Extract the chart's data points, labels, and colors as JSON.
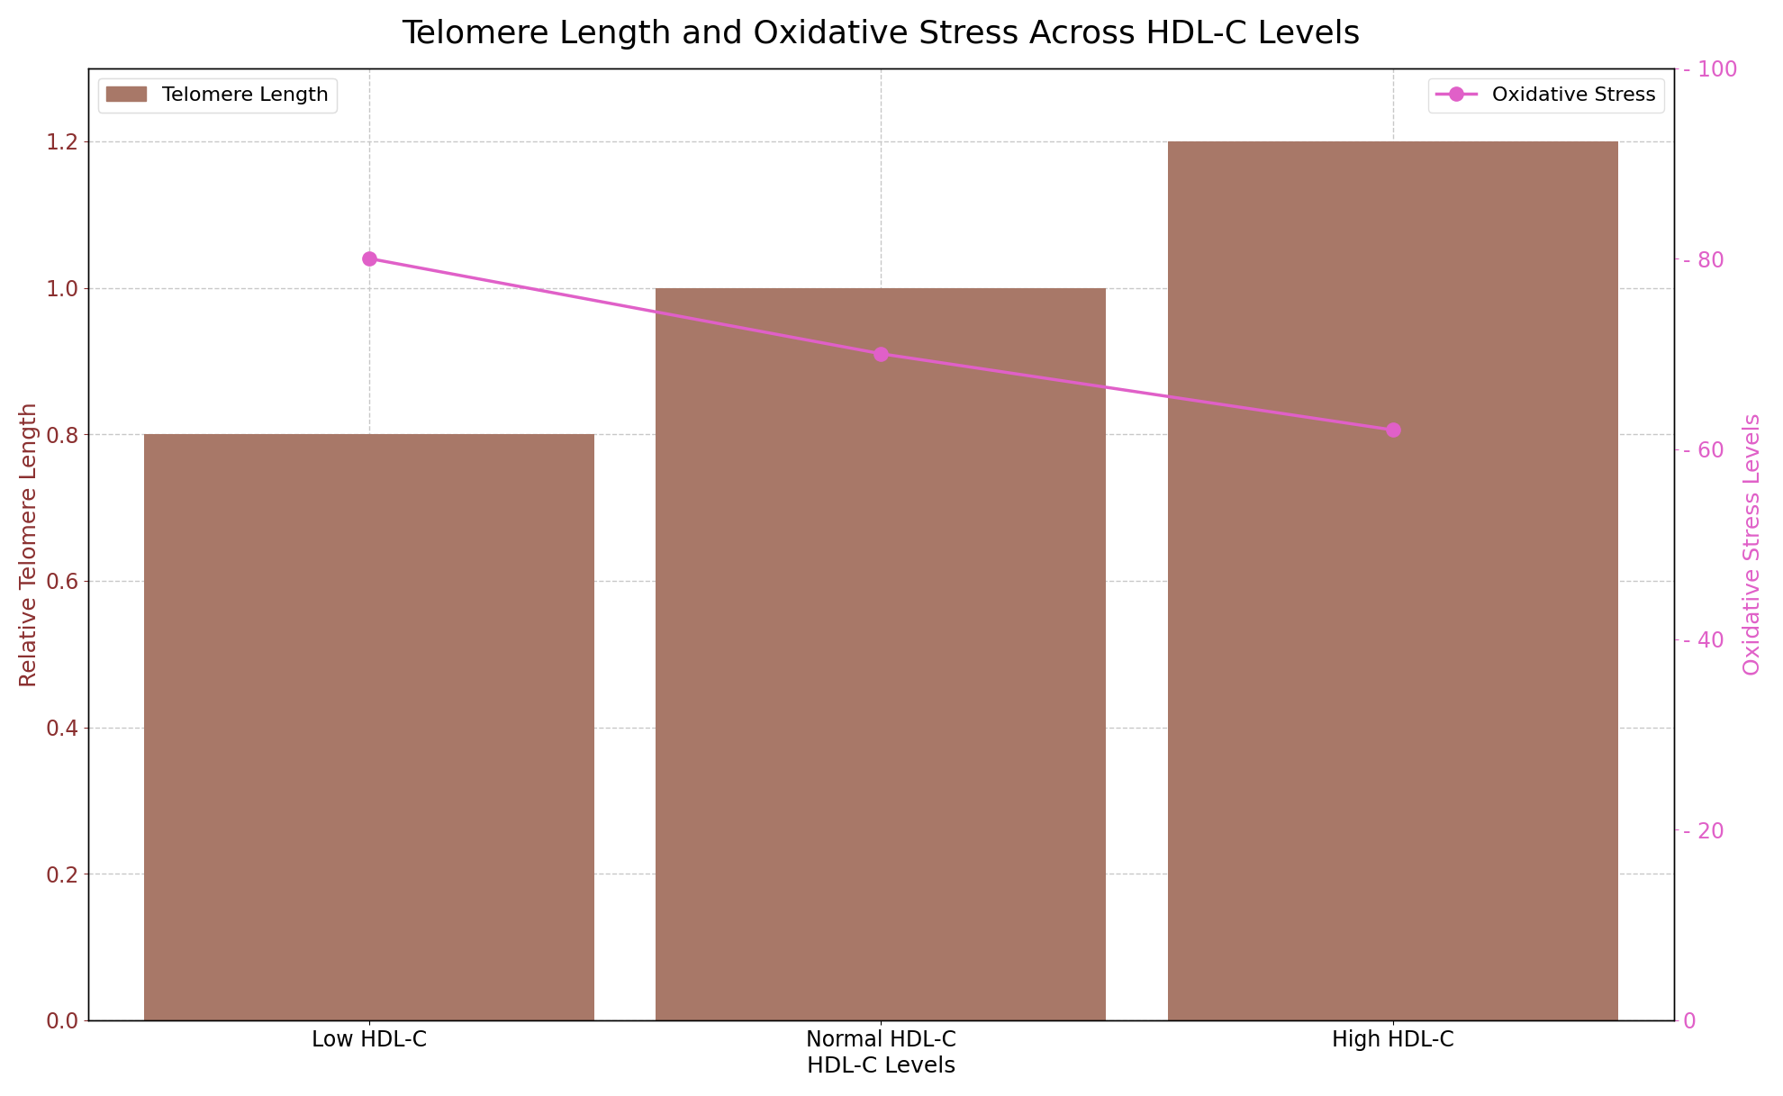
{
  "categories": [
    "Low HDL-C",
    "Normal HDL-C",
    "High HDL-C"
  ],
  "telomere_values": [
    0.8,
    1.0,
    1.2
  ],
  "oxidative_stress_values": [
    80,
    70,
    62
  ],
  "bar_color": "#a87868",
  "line_color": "#e060c8",
  "title": "Telomere Length and Oxidative Stress Across HDL-C Levels",
  "xlabel": "HDL-C Levels",
  "ylabel_left": "Relative Telomere Length",
  "ylabel_right": "Oxidative Stress Levels",
  "ylim_left": [
    0,
    1.3
  ],
  "ylim_right": [
    0,
    100
  ],
  "title_fontsize": 26,
  "axis_label_fontsize": 18,
  "tick_fontsize": 17,
  "legend_fontsize": 16,
  "bar_width": 0.88,
  "background_color": "#ffffff",
  "grid_color": "#c8c8c8",
  "left_tick_color": "#8b3030",
  "right_tick_color": "#e060c8",
  "legend_text_color": "#222222"
}
